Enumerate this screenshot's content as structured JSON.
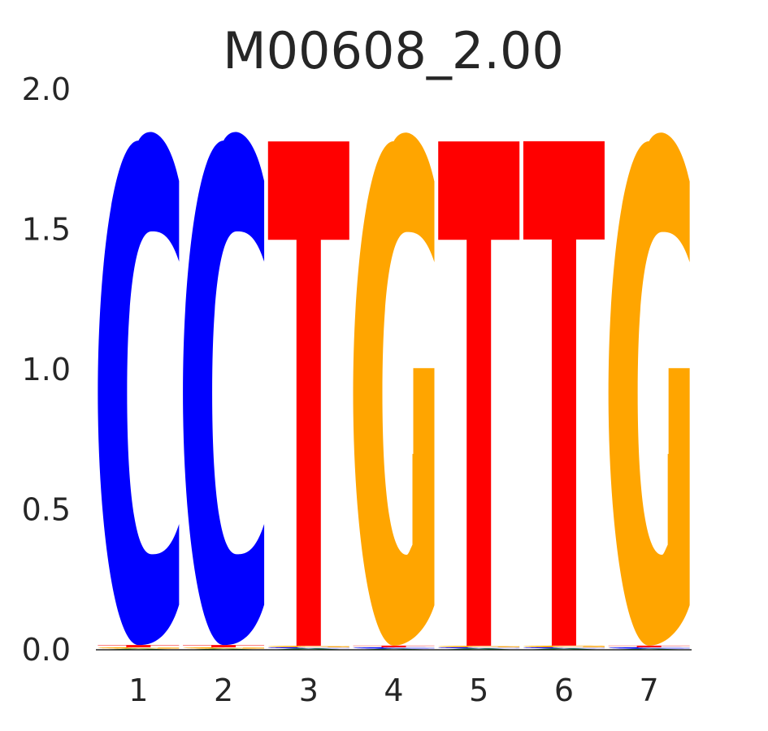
{
  "chart_data": {
    "type": "sequence-logo",
    "title": "M00608_2.00",
    "xlabel": "",
    "ylabel": "",
    "ylim": [
      0,
      2.0
    ],
    "y_ticks": [
      "0.0",
      "0.5",
      "1.0",
      "1.5",
      "2.0"
    ],
    "y_tick_values": [
      0,
      0.5,
      1.0,
      1.5,
      2.0
    ],
    "x_ticks": [
      "1",
      "2",
      "3",
      "4",
      "5",
      "6",
      "7"
    ],
    "grid": false,
    "colors": {
      "A": "#008000",
      "C": "#0000ff",
      "G": "#ffa500",
      "T": "#ff0000"
    },
    "positions": [
      {
        "pos": 1,
        "letters": [
          {
            "letter": "A",
            "height": 0.004
          },
          {
            "letter": "G",
            "height": 0.005
          },
          {
            "letter": "T",
            "height": 0.008
          },
          {
            "letter": "C",
            "height": 1.8
          }
        ]
      },
      {
        "pos": 2,
        "letters": [
          {
            "letter": "A",
            "height": 0.004
          },
          {
            "letter": "G",
            "height": 0.005
          },
          {
            "letter": "T",
            "height": 0.008
          },
          {
            "letter": "C",
            "height": 1.8
          }
        ]
      },
      {
        "pos": 3,
        "letters": [
          {
            "letter": "A",
            "height": 0.005
          },
          {
            "letter": "C",
            "height": 0.004
          },
          {
            "letter": "G",
            "height": 0.005
          },
          {
            "letter": "T",
            "height": 1.8
          }
        ]
      },
      {
        "pos": 4,
        "letters": [
          {
            "letter": "A",
            "height": 0.004
          },
          {
            "letter": "C",
            "height": 0.005
          },
          {
            "letter": "T",
            "height": 0.006
          },
          {
            "letter": "G",
            "height": 1.8
          }
        ]
      },
      {
        "pos": 5,
        "letters": [
          {
            "letter": "A",
            "height": 0.005
          },
          {
            "letter": "C",
            "height": 0.004
          },
          {
            "letter": "G",
            "height": 0.005
          },
          {
            "letter": "T",
            "height": 1.8
          }
        ]
      },
      {
        "pos": 6,
        "letters": [
          {
            "letter": "A",
            "height": 0.005
          },
          {
            "letter": "C",
            "height": 0.004
          },
          {
            "letter": "G",
            "height": 0.006
          },
          {
            "letter": "T",
            "height": 1.8
          }
        ]
      },
      {
        "pos": 7,
        "letters": [
          {
            "letter": "A",
            "height": 0.004
          },
          {
            "letter": "C",
            "height": 0.005
          },
          {
            "letter": "T",
            "height": 0.006
          },
          {
            "letter": "G",
            "height": 1.8
          }
        ]
      }
    ]
  }
}
